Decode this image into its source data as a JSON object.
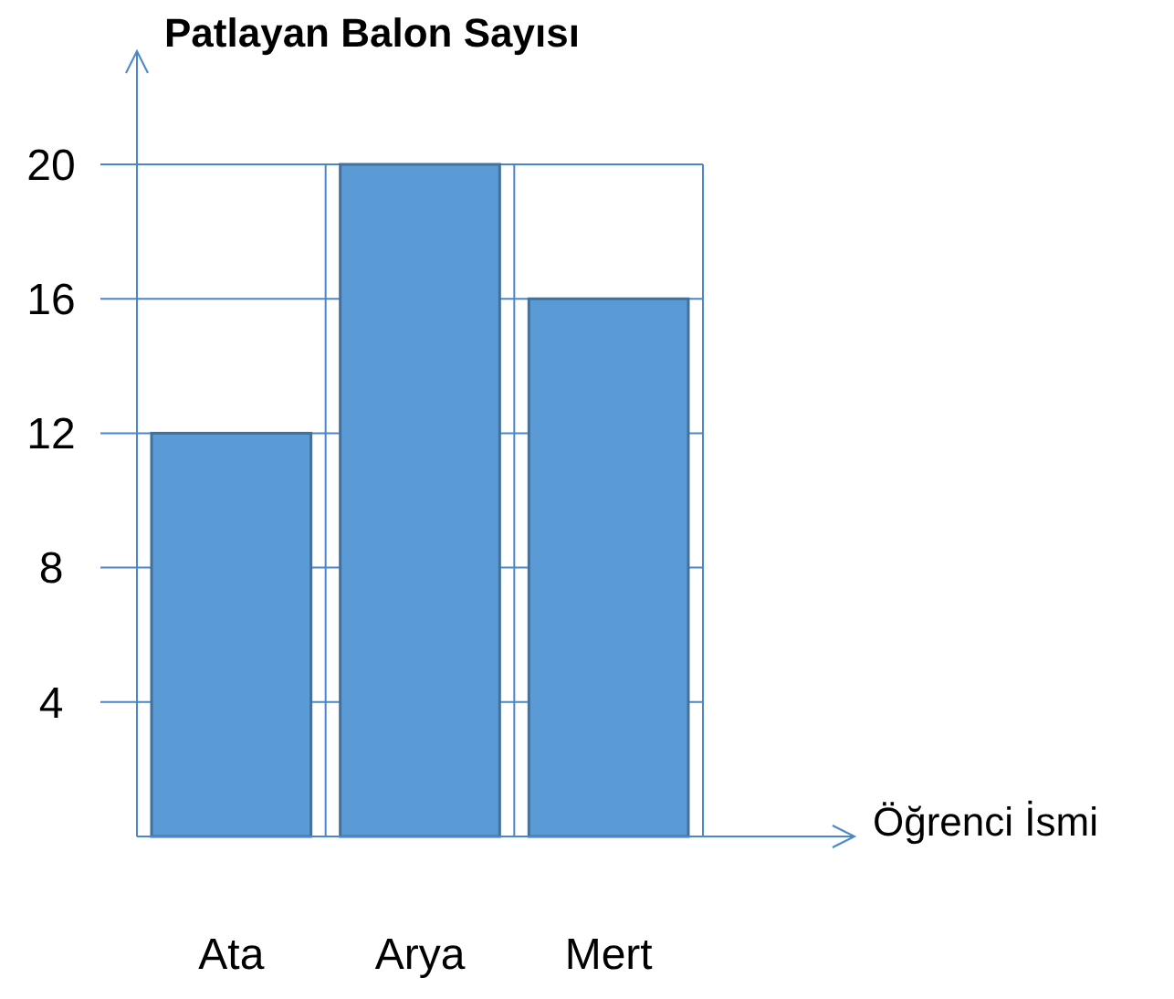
{
  "chart_data": {
    "type": "bar",
    "ylabel": "Patlayan Balon Sayısı",
    "xlabel": "Öğrenci İsmi",
    "categories": [
      "Ata",
      "Arya",
      "Mert"
    ],
    "values": [
      12,
      20,
      16
    ],
    "color": "#5b9bd5",
    "ylim": [
      0,
      20
    ],
    "yticks": [
      4,
      8,
      12,
      16,
      20
    ],
    "grid": true
  }
}
